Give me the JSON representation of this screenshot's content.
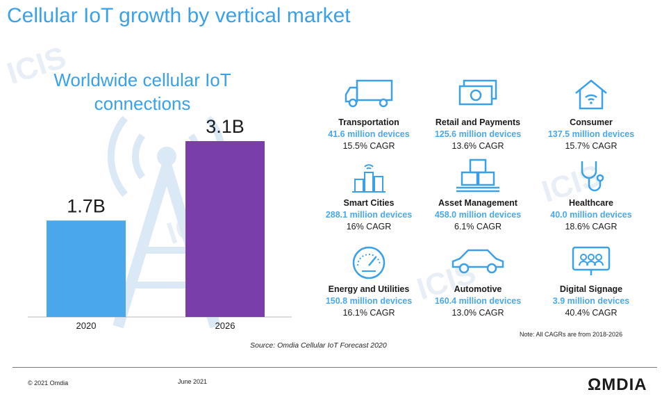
{
  "header": {
    "title": "Cellular IoT growth by vertical market"
  },
  "chart_data": {
    "type": "bar",
    "title": "Worldwide cellular IoT connections",
    "categories": [
      "2020",
      "2026"
    ],
    "values": [
      1.7,
      3.1
    ],
    "value_labels": [
      "1.7B",
      "3.1B"
    ],
    "unit": "billion connections",
    "colors": [
      "#4aa8ea",
      "#7a3eaa"
    ],
    "ylim": [
      0,
      3.1
    ],
    "xlabel": "",
    "ylabel": "",
    "grid": false
  },
  "markets": [
    {
      "icon": "truck-icon",
      "name": "Transportation",
      "devices": "41.6 million devices",
      "cagr": "15.5% CAGR"
    },
    {
      "icon": "cash-icon",
      "name": "Retail and Payments",
      "devices": "125.6 million devices",
      "cagr": "13.6% CAGR"
    },
    {
      "icon": "home-wifi-icon",
      "name": "Consumer",
      "devices": "137.5 million devices",
      "cagr": "15.7% CAGR"
    },
    {
      "icon": "city-icon",
      "name": "Smart Cities",
      "devices": "288.1 million devices",
      "cagr": "16% CAGR"
    },
    {
      "icon": "boxes-icon",
      "name": "Asset Management",
      "devices": "458.0 million devices",
      "cagr": "6.1% CAGR"
    },
    {
      "icon": "stethoscope-icon",
      "name": "Healthcare",
      "devices": "40.0 million devices",
      "cagr": "18.6% CAGR"
    },
    {
      "icon": "meter-icon",
      "name": "Energy and Utilities",
      "devices": "150.8 million devices",
      "cagr": "16.1% CAGR"
    },
    {
      "icon": "car-icon",
      "name": "Automotive",
      "devices": "160.4 million devices",
      "cagr": "13.0% CAGR"
    },
    {
      "icon": "signage-icon",
      "name": "Digital Signage",
      "devices": "3.9 million devices",
      "cagr": "40.4% CAGR"
    }
  ],
  "note": "Note: All CAGRs are from 2018-2026",
  "source": "Source: Omdia Cellular IoT Forecast 2020",
  "footer": {
    "copyright": "© 2021 Omdia",
    "date": "June 2021",
    "logo": "ΩMDIA"
  },
  "colors": {
    "accent": "#3aa0e8",
    "device_blue": "#4aa8ea",
    "purple": "#7a3eaa"
  }
}
